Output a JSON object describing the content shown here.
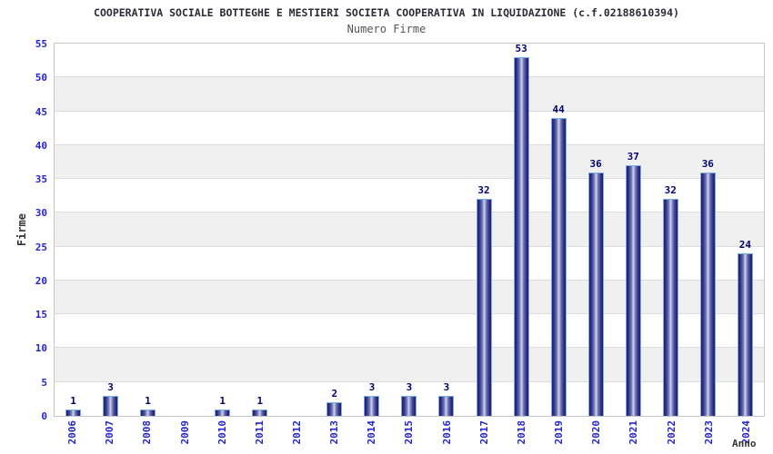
{
  "header": {
    "title": "COOPERATIVA SOCIALE BOTTEGHE E MESTIERI SOCIETA COOPERATIVA IN LIQUIDAZIONE (c.f.02188610394)",
    "subtitle": "Numero Firme"
  },
  "chart_data": {
    "type": "bar",
    "title": "Numero Firme",
    "categories": [
      "2006",
      "2007",
      "2008",
      "2009",
      "2010",
      "2011",
      "2012",
      "2013",
      "2014",
      "2015",
      "2016",
      "2017",
      "2018",
      "2019",
      "2020",
      "2021",
      "2022",
      "2023",
      "2024"
    ],
    "values": [
      1,
      3,
      1,
      0,
      1,
      1,
      0,
      2,
      3,
      3,
      3,
      32,
      53,
      44,
      36,
      37,
      32,
      36,
      24
    ],
    "xlabel": "Anno",
    "ylabel": "Firme",
    "ylim": [
      0,
      55
    ],
    "ytick_step": 5,
    "yticks": [
      0,
      5,
      10,
      15,
      20,
      25,
      30,
      35,
      40,
      45,
      50,
      55
    ],
    "grid": "horizontal-bands",
    "legend": "none",
    "bar_labels_shown": true,
    "zero_values_have_no_bar_or_label": true
  },
  "colors": {
    "title": "#2b2b38",
    "subtitle": "#555555",
    "tick_label": "#2424cc",
    "value_label": "#000070",
    "axis_label": "#333333",
    "band_gray": "#f0f0f0",
    "gridline": "#dcdcdc",
    "plot_border": "#c6c6c6",
    "bar_edge_dark": "#20207a",
    "bar_center_light": "#cfd4ef",
    "bar_border": "#79ade2",
    "background": "#ffffff"
  }
}
